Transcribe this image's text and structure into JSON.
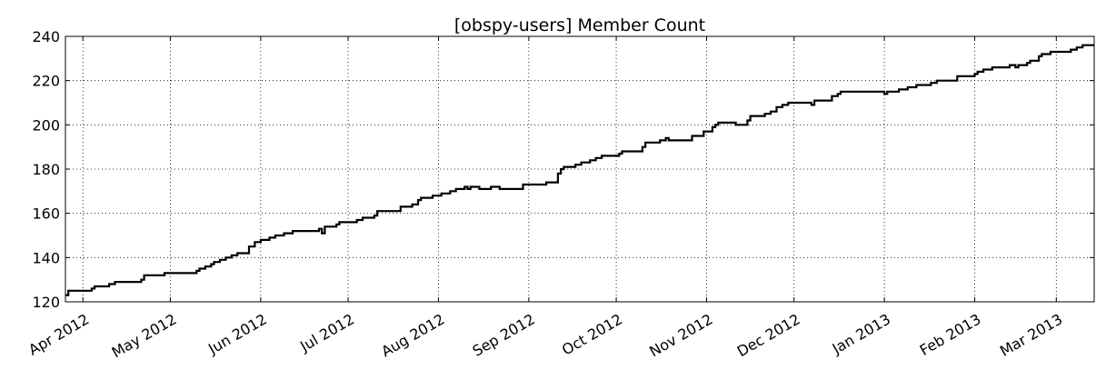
{
  "chart_data": {
    "type": "line",
    "title": "[obspy-users] Member Count",
    "xlabel": "",
    "ylabel": "",
    "xlim": [
      "2012-03-26",
      "2013-03-14"
    ],
    "ylim": [
      120,
      240
    ],
    "grid": true,
    "grid_style": "dotted",
    "line_color": "#000000",
    "x_ticks": [
      {
        "date": "2012-04-01",
        "label": "Apr 2012"
      },
      {
        "date": "2012-05-01",
        "label": "May 2012"
      },
      {
        "date": "2012-06-01",
        "label": "Jun 2012"
      },
      {
        "date": "2012-07-01",
        "label": "Jul 2012"
      },
      {
        "date": "2012-08-01",
        "label": "Aug 2012"
      },
      {
        "date": "2012-09-01",
        "label": "Sep 2012"
      },
      {
        "date": "2012-10-01",
        "label": "Oct 2012"
      },
      {
        "date": "2012-11-01",
        "label": "Nov 2012"
      },
      {
        "date": "2012-12-01",
        "label": "Dec 2012"
      },
      {
        "date": "2013-01-01",
        "label": "Jan 2013"
      },
      {
        "date": "2013-02-01",
        "label": "Feb 2013"
      },
      {
        "date": "2013-03-01",
        "label": "Mar 2013"
      }
    ],
    "y_ticks": [
      120,
      140,
      160,
      180,
      200,
      220,
      240
    ],
    "series": [
      {
        "name": "",
        "points": [
          [
            "2012-03-26",
            123
          ],
          [
            "2012-03-27",
            125
          ],
          [
            "2012-04-03",
            125
          ],
          [
            "2012-04-04",
            126
          ],
          [
            "2012-04-05",
            127
          ],
          [
            "2012-04-10",
            128
          ],
          [
            "2012-04-12",
            129
          ],
          [
            "2012-04-21",
            130
          ],
          [
            "2012-04-22",
            132
          ],
          [
            "2012-04-28",
            132
          ],
          [
            "2012-04-29",
            133
          ],
          [
            "2012-05-09",
            133
          ],
          [
            "2012-05-10",
            134
          ],
          [
            "2012-05-11",
            135
          ],
          [
            "2012-05-13",
            136
          ],
          [
            "2012-05-15",
            137
          ],
          [
            "2012-05-16",
            138
          ],
          [
            "2012-05-18",
            139
          ],
          [
            "2012-05-20",
            140
          ],
          [
            "2012-05-22",
            141
          ],
          [
            "2012-05-24",
            142
          ],
          [
            "2012-05-27",
            142
          ],
          [
            "2012-05-28",
            145
          ],
          [
            "2012-05-30",
            147
          ],
          [
            "2012-06-01",
            148
          ],
          [
            "2012-06-04",
            149
          ],
          [
            "2012-06-06",
            150
          ],
          [
            "2012-06-09",
            151
          ],
          [
            "2012-06-12",
            152
          ],
          [
            "2012-06-20",
            152
          ],
          [
            "2012-06-21",
            153
          ],
          [
            "2012-06-22",
            151
          ],
          [
            "2012-06-23",
            154
          ],
          [
            "2012-06-26",
            154
          ],
          [
            "2012-06-27",
            155
          ],
          [
            "2012-06-28",
            156
          ],
          [
            "2012-07-03",
            156
          ],
          [
            "2012-07-04",
            157
          ],
          [
            "2012-07-06",
            158
          ],
          [
            "2012-07-10",
            159
          ],
          [
            "2012-07-11",
            161
          ],
          [
            "2012-07-18",
            161
          ],
          [
            "2012-07-19",
            163
          ],
          [
            "2012-07-22",
            163
          ],
          [
            "2012-07-23",
            164
          ],
          [
            "2012-07-25",
            166
          ],
          [
            "2012-07-26",
            167
          ],
          [
            "2012-07-30",
            168
          ],
          [
            "2012-08-02",
            169
          ],
          [
            "2012-08-05",
            170
          ],
          [
            "2012-08-07",
            171
          ],
          [
            "2012-08-10",
            172
          ],
          [
            "2012-08-11",
            171
          ],
          [
            "2012-08-12",
            172
          ],
          [
            "2012-08-15",
            171
          ],
          [
            "2012-08-19",
            172
          ],
          [
            "2012-08-22",
            171
          ],
          [
            "2012-08-29",
            171
          ],
          [
            "2012-08-30",
            173
          ],
          [
            "2012-09-06",
            173
          ],
          [
            "2012-09-07",
            174
          ],
          [
            "2012-09-10",
            174
          ],
          [
            "2012-09-11",
            178
          ],
          [
            "2012-09-12",
            180
          ],
          [
            "2012-09-13",
            181
          ],
          [
            "2012-09-17",
            182
          ],
          [
            "2012-09-19",
            183
          ],
          [
            "2012-09-22",
            184
          ],
          [
            "2012-09-24",
            185
          ],
          [
            "2012-09-26",
            186
          ],
          [
            "2012-10-01",
            186
          ],
          [
            "2012-10-02",
            187
          ],
          [
            "2012-10-03",
            188
          ],
          [
            "2012-10-09",
            188
          ],
          [
            "2012-10-10",
            190
          ],
          [
            "2012-10-11",
            192
          ],
          [
            "2012-10-16",
            193
          ],
          [
            "2012-10-18",
            194
          ],
          [
            "2012-10-19",
            193
          ],
          [
            "2012-10-26",
            193
          ],
          [
            "2012-10-27",
            195
          ],
          [
            "2012-10-30",
            195
          ],
          [
            "2012-10-31",
            197
          ],
          [
            "2012-11-03",
            199
          ],
          [
            "2012-11-04",
            200
          ],
          [
            "2012-11-05",
            201
          ],
          [
            "2012-11-10",
            201
          ],
          [
            "2012-11-11",
            200
          ],
          [
            "2012-11-14",
            200
          ],
          [
            "2012-11-15",
            202
          ],
          [
            "2012-11-16",
            204
          ],
          [
            "2012-11-21",
            205
          ],
          [
            "2012-11-23",
            206
          ],
          [
            "2012-11-25",
            208
          ],
          [
            "2012-11-27",
            209
          ],
          [
            "2012-11-29",
            210
          ],
          [
            "2012-12-06",
            210
          ],
          [
            "2012-12-07",
            209
          ],
          [
            "2012-12-08",
            211
          ],
          [
            "2012-12-13",
            211
          ],
          [
            "2012-12-14",
            213
          ],
          [
            "2012-12-16",
            214
          ],
          [
            "2012-12-17",
            215
          ],
          [
            "2012-12-31",
            215
          ],
          [
            "2013-01-01",
            214
          ],
          [
            "2013-01-02",
            215
          ],
          [
            "2013-01-05",
            215
          ],
          [
            "2013-01-06",
            216
          ],
          [
            "2013-01-09",
            217
          ],
          [
            "2013-01-12",
            218
          ],
          [
            "2013-01-17",
            219
          ],
          [
            "2013-01-19",
            220
          ],
          [
            "2013-01-25",
            220
          ],
          [
            "2013-01-26",
            222
          ],
          [
            "2013-01-31",
            222
          ],
          [
            "2013-02-01",
            223
          ],
          [
            "2013-02-02",
            224
          ],
          [
            "2013-02-04",
            225
          ],
          [
            "2013-02-07",
            226
          ],
          [
            "2013-02-12",
            226
          ],
          [
            "2013-02-13",
            227
          ],
          [
            "2013-02-15",
            226
          ],
          [
            "2013-02-16",
            227
          ],
          [
            "2013-02-19",
            228
          ],
          [
            "2013-02-20",
            229
          ],
          [
            "2013-02-23",
            231
          ],
          [
            "2013-02-24",
            232
          ],
          [
            "2013-02-27",
            233
          ],
          [
            "2013-03-06",
            234
          ],
          [
            "2013-03-08",
            235
          ],
          [
            "2013-03-10",
            236
          ],
          [
            "2013-03-14",
            236
          ]
        ]
      }
    ]
  }
}
